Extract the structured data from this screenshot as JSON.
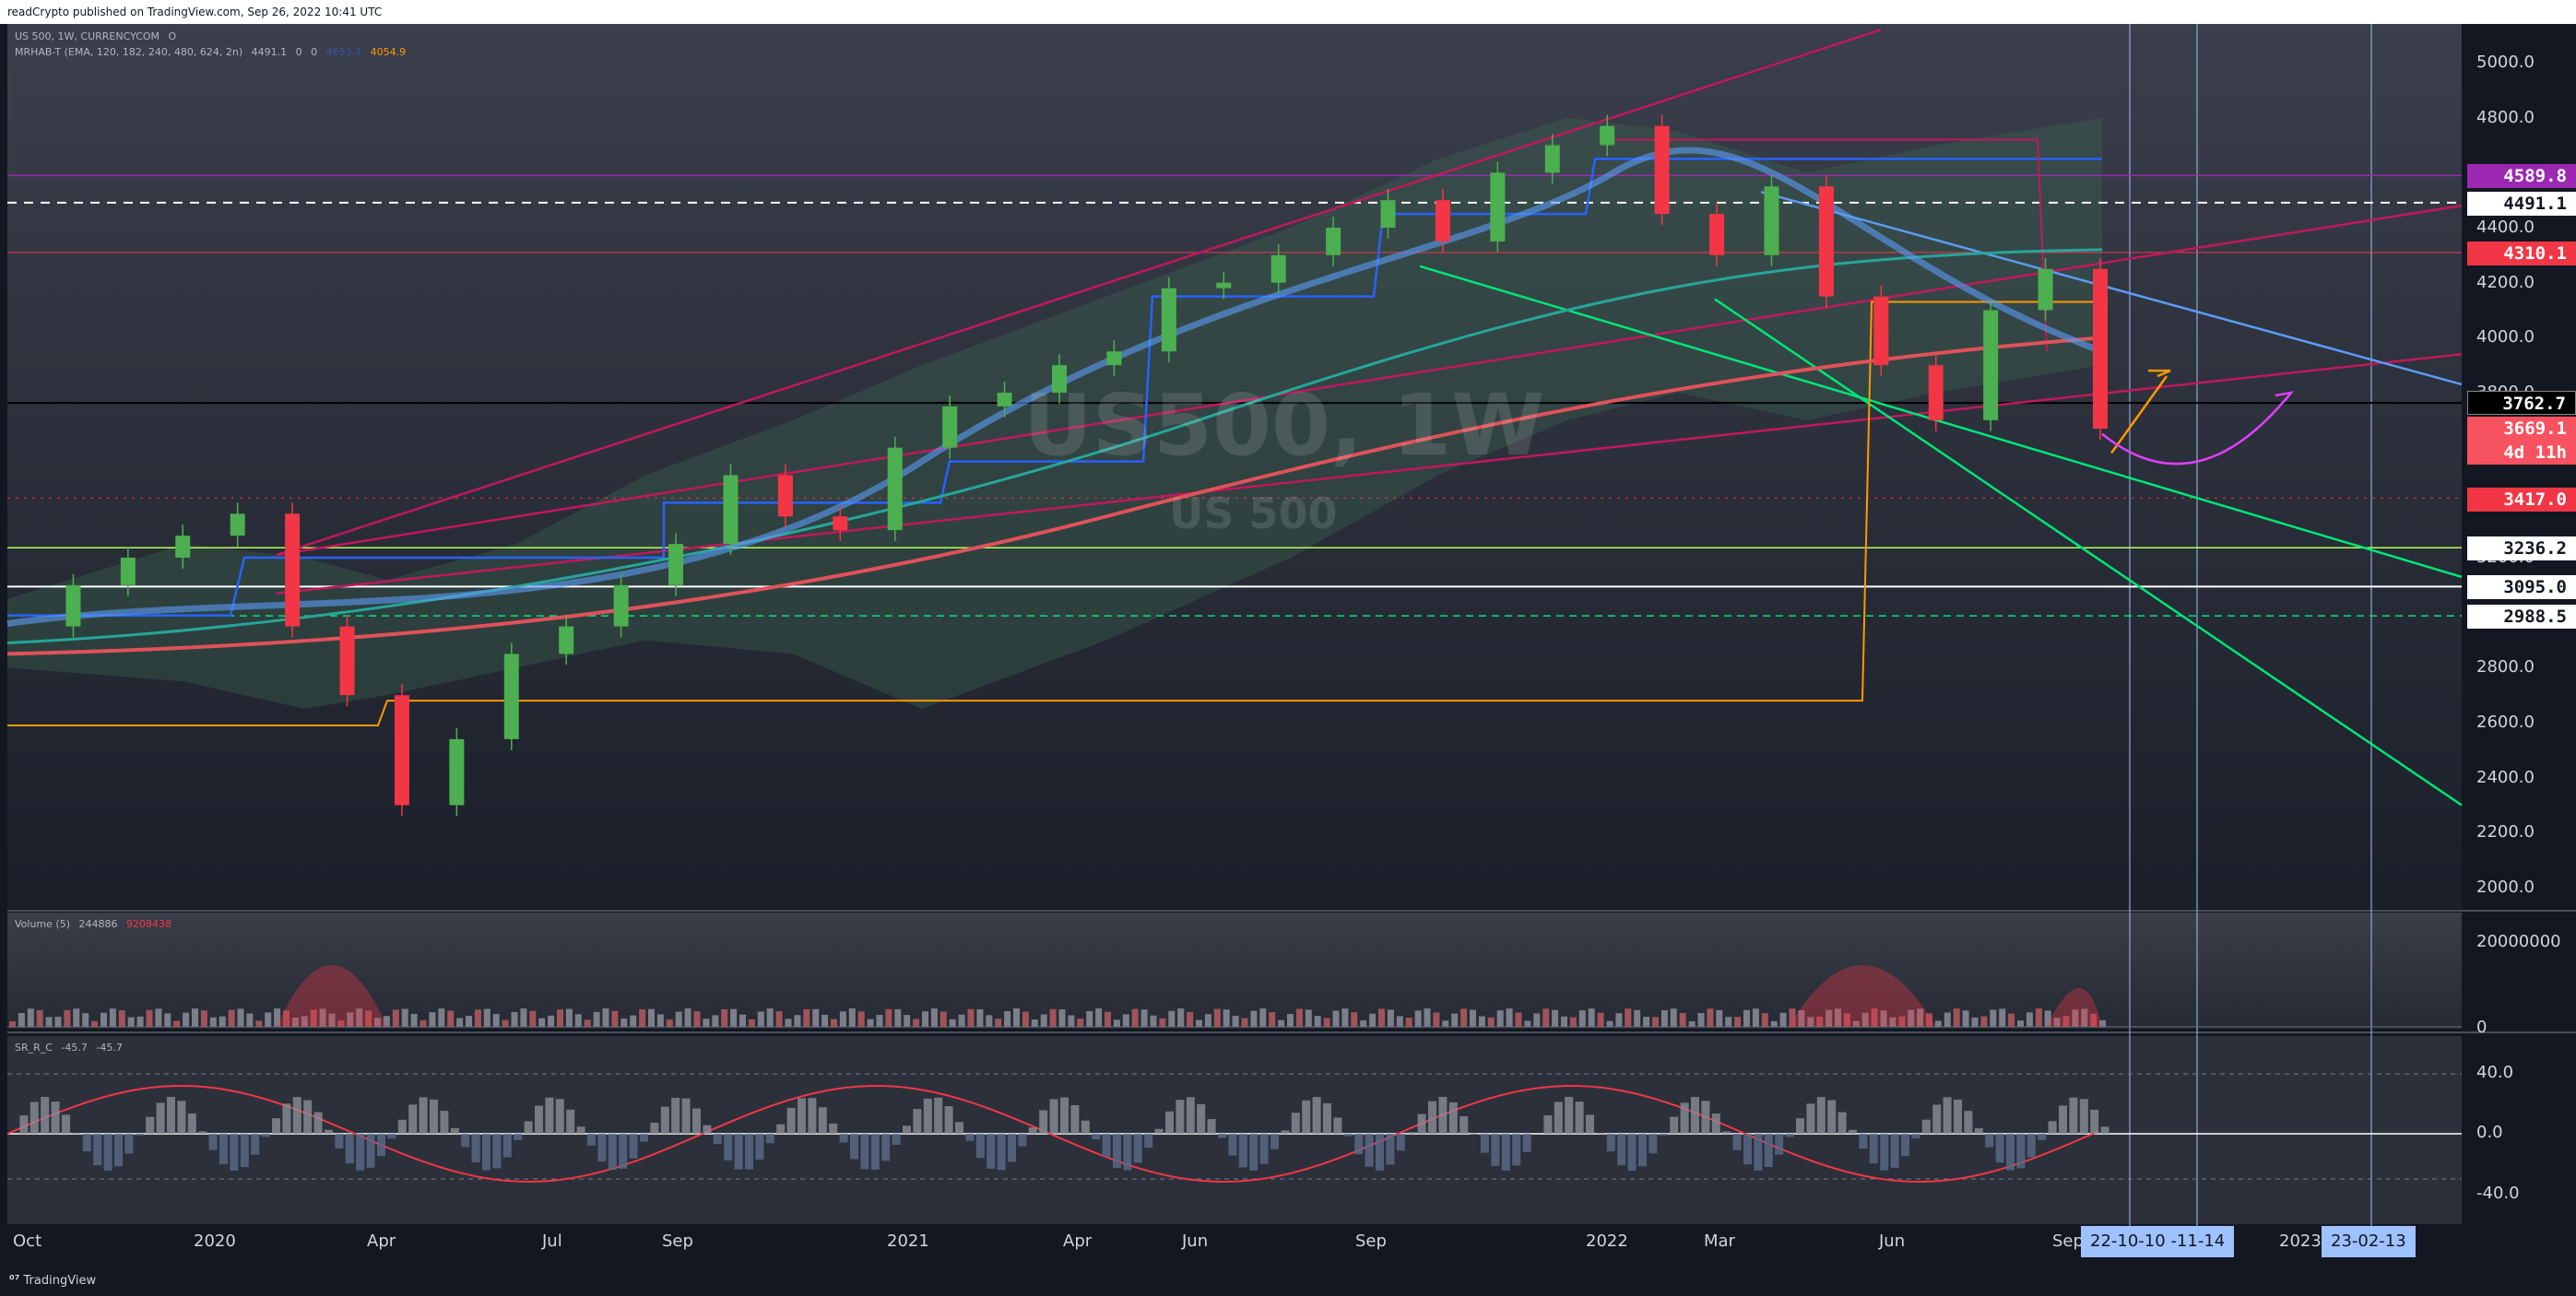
{
  "header": {
    "published": "readCrypto published on TradingView.com, Sep 26, 2022 10:41 UTC"
  },
  "legend": {
    "main_symbol": "US 500, 1W, CURRENCYCOM",
    "main_ohlc": "O",
    "indicator": "MRHAB-T (EMA, 120, 182, 240, 480, 624, 2n)",
    "indicator_values": [
      "4491.1",
      "0",
      "0",
      "4653.7",
      "4054.9"
    ],
    "volume": "Volume (5)",
    "volume_vals": [
      "244886",
      "9208438"
    ],
    "osc": "SR_R_C",
    "osc_vals": [
      "-45.7",
      "-45.7"
    ]
  },
  "watermark": {
    "symbol": "US500, 1W",
    "name": "US 500"
  },
  "price_axis": {
    "ticks": [
      "5000.0",
      "4800.0",
      "4600.0",
      "4400.0",
      "4200.0",
      "4000.0",
      "3800.0",
      "3600.0",
      "3400.0",
      "3200.0",
      "3000.0",
      "2800.0",
      "2600.0",
      "2400.0",
      "2200.0",
      "2000.0"
    ],
    "badges": {
      "b4589": "4589.8",
      "b4491": "4491.1",
      "b4310": "4310.1",
      "b3762": "3762.7",
      "b3669": "3669.1",
      "b3669_time": "4d 11h",
      "b3417": "3417.0",
      "b3236": "3236.2",
      "b3095": "3095.0",
      "b2988": "2988.5"
    }
  },
  "volume_axis": {
    "top": "20000000",
    "bottom": "0"
  },
  "osc_axis": {
    "ticks": [
      "40.0",
      "0.0",
      "-40.0"
    ]
  },
  "time_axis": {
    "labels": [
      "Oct",
      "2020",
      "Apr",
      "Jul",
      "Sep",
      "2021",
      "Apr",
      "Jun",
      "Sep",
      "2022",
      "Mar",
      "Jun",
      "Sep",
      "2023"
    ],
    "highlight_1": "22-10-10",
    "highlight_2": "-11-14",
    "highlight_3": "23-02-13"
  },
  "footer": {
    "brand": "TradingView"
  },
  "colors": {
    "bg": "#131722",
    "up": "#4caf50",
    "down": "#f23645",
    "channel": "#c2185b",
    "green_line": "#00e676",
    "blue_line": "#5b9cf6"
  },
  "chart_data": {
    "type": "candlestick",
    "title": "US500, 1W",
    "y_range": [
      2000,
      5100
    ],
    "horizontal_levels": [
      4589.8,
      4491.1,
      4310.1,
      3762.7,
      3417.0,
      3236.2,
      3095.0,
      2988.5
    ],
    "last_price": 3669.1,
    "weekly_close_path": [
      [
        "2019-10",
        2950
      ],
      [
        "2019-11",
        3100
      ],
      [
        "2019-12",
        3200
      ],
      [
        "2020-01",
        3280
      ],
      [
        "2020-02",
        3360
      ],
      [
        "2020-02-28",
        2950
      ],
      [
        "2020-03-13",
        2700
      ],
      [
        "2020-03-20",
        2300
      ],
      [
        "2020-03-27",
        2540
      ],
      [
        "2020-04",
        2850
      ],
      [
        "2020-05",
        2950
      ],
      [
        "2020-06",
        3100
      ],
      [
        "2020-07",
        3250
      ],
      [
        "2020-08",
        3500
      ],
      [
        "2020-09",
        3350
      ],
      [
        "2020-10",
        3300
      ],
      [
        "2020-11",
        3600
      ],
      [
        "2020-12",
        3750
      ],
      [
        "2021-01",
        3800
      ],
      [
        "2021-02",
        3900
      ],
      [
        "2021-03",
        3950
      ],
      [
        "2021-04",
        4180
      ],
      [
        "2021-05",
        4200
      ],
      [
        "2021-06",
        4300
      ],
      [
        "2021-07",
        4400
      ],
      [
        "2021-08",
        4500
      ],
      [
        "2021-09",
        4350
      ],
      [
        "2021-10",
        4600
      ],
      [
        "2021-11",
        4700
      ],
      [
        "2021-12",
        4770
      ],
      [
        "2022-01",
        4450
      ],
      [
        "2022-02",
        4300
      ],
      [
        "2022-03",
        4550
      ],
      [
        "2022-04",
        4150
      ],
      [
        "2022-05",
        3900
      ],
      [
        "2022-06",
        3700
      ],
      [
        "2022-07",
        4100
      ],
      [
        "2022-08",
        4250
      ],
      [
        "2022-09",
        3669.1
      ]
    ]
  }
}
